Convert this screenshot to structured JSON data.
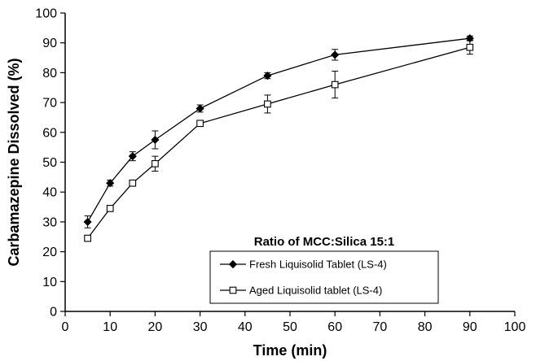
{
  "chart_data": {
    "type": "line",
    "xlabel": "Time (min)",
    "ylabel": "Carbamazepine Dissolved (%)",
    "xlim": [
      0,
      100
    ],
    "ylim": [
      0,
      100
    ],
    "xticks": [
      0,
      10,
      20,
      30,
      40,
      50,
      60,
      70,
      80,
      90,
      100
    ],
    "yticks": [
      0,
      10,
      20,
      30,
      40,
      50,
      60,
      70,
      80,
      90,
      100
    ],
    "grid": false,
    "legend": {
      "title": "Ratio of MCC:Silica 15:1",
      "position": "bottom-right"
    },
    "series": [
      {
        "name": "Fresh Liquisolid Tablet (LS-4)",
        "marker": "filled-diamond",
        "x": [
          5,
          10,
          15,
          20,
          30,
          45,
          60,
          90
        ],
        "y": [
          30,
          43,
          52,
          57.5,
          68,
          79,
          86,
          91.5
        ],
        "error": [
          2,
          1,
          1.5,
          3,
          1.2,
          1,
          1.8,
          0.8
        ]
      },
      {
        "name": "Aged Liquisolid tablet (LS-4)",
        "marker": "open-square",
        "x": [
          5,
          10,
          15,
          20,
          30,
          45,
          60,
          90
        ],
        "y": [
          24.5,
          34.5,
          43,
          49.5,
          63,
          69.5,
          76,
          88.5
        ],
        "error": [
          0.5,
          1,
          1,
          2.5,
          0.5,
          3,
          4.5,
          2.3
        ]
      }
    ]
  }
}
